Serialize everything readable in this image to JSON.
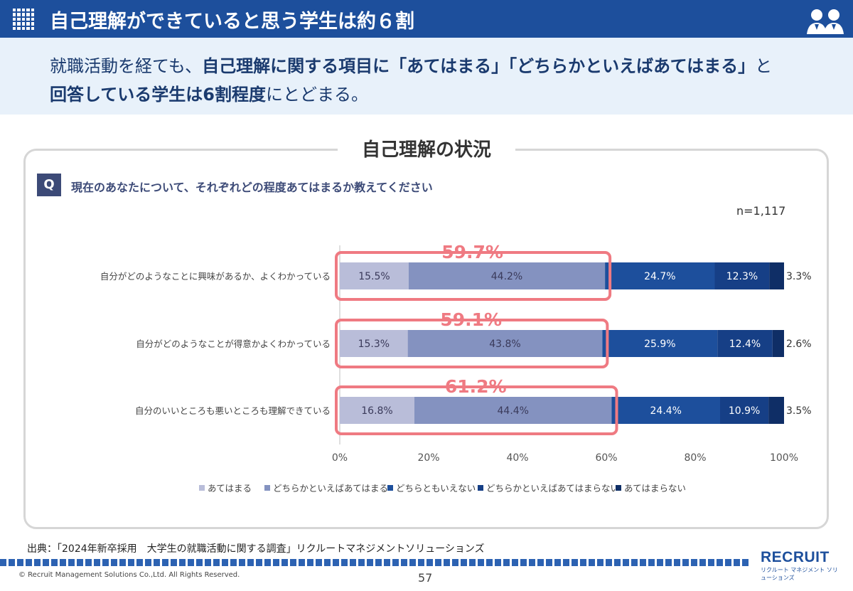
{
  "header": {
    "title": "自己理解ができていると思う学生は約６割"
  },
  "lead": {
    "part1": "就職活動を経ても、",
    "bold1": "自己理解に関する項目に「あてはまる」「どちらかといえばあてはまる」",
    "part2": "と",
    "bold2": "回答している学生は6割程度",
    "part3": "にとどまる。"
  },
  "panel": {
    "title": "自己理解の状況",
    "q_badge": "Q",
    "question": "現在のあなたについて、それぞれどの程度あてはまるか教えてください",
    "n": "n=1,117"
  },
  "chart_data": {
    "type": "bar",
    "orientation": "horizontal",
    "stacked": true,
    "categories": [
      "自分がどのようなことに興味があるか、よくわかっている",
      "自分がどのようなことが得意かよくわかっている",
      "自分のいいところも悪いところも理解できている"
    ],
    "series": [
      {
        "name": "あてはまる",
        "values": [
          15.5,
          15.3,
          16.8
        ],
        "color": "#b9bdd9"
      },
      {
        "name": "どちらかといえばあてはまる",
        "values": [
          44.2,
          43.8,
          44.4
        ],
        "color": "#8492c0"
      },
      {
        "name": "どちらともいえない",
        "values": [
          24.7,
          25.9,
          24.4
        ],
        "color": "#1d4f9c"
      },
      {
        "name": "どちらかといえばあてはまらない",
        "values": [
          12.3,
          12.4,
          10.9
        ],
        "color": "#163f86"
      },
      {
        "name": "あてはまらない",
        "values": [
          3.3,
          2.6,
          3.5
        ],
        "color": "#0f2e66"
      }
    ],
    "value_labels": [
      [
        "15.5%",
        "44.2%",
        "24.7%",
        "12.3%",
        "3.3%"
      ],
      [
        "15.3%",
        "43.8%",
        "25.9%",
        "12.4%",
        "2.6%"
      ],
      [
        "16.8%",
        "44.4%",
        "24.4%",
        "10.9%",
        "3.5%"
      ]
    ],
    "highlight_totals": [
      "59.7%",
      "59.1%",
      "61.2%"
    ],
    "highlight_color": "#ef7a82",
    "xlim": [
      0,
      100
    ],
    "xticks": [
      "0%",
      "20%",
      "40%",
      "60%",
      "80%",
      "100%"
    ],
    "legend_position": "bottom"
  },
  "footer": {
    "source": "出典：「2024年新卒採用　大学生の就職活動に関する調査」リクルートマネジメントソリューションズ",
    "copyright": "© Recruit Management Solutions Co.,Ltd. All Rights Reserved.",
    "page": "57",
    "logo": "RECRUIT",
    "logo_sub": "リクルート マネジメント ソリューションズ"
  }
}
